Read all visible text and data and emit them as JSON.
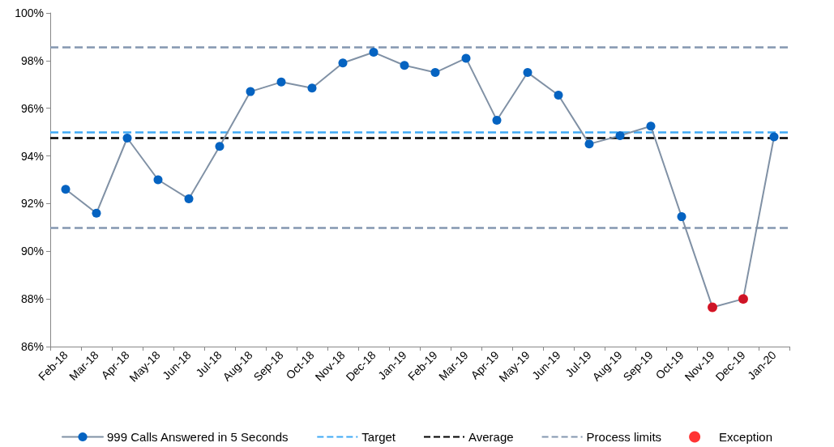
{
  "chart_data": {
    "type": "line",
    "categories": [
      "Feb-18",
      "Mar-18",
      "Apr-18",
      "May-18",
      "Jun-18",
      "Jul-18",
      "Aug-18",
      "Sep-18",
      "Oct-18",
      "Nov-18",
      "Dec-18",
      "Jan-19",
      "Feb-19",
      "Mar-19",
      "Apr-19",
      "May-19",
      "Jun-19",
      "Jul-19",
      "Aug-19",
      "Sep-19",
      "Oct-19",
      "Nov-19",
      "Dec-19",
      "Jan-20"
    ],
    "series": [
      {
        "name": "999 Calls Answered in 5 Seconds",
        "color": "#0563c1",
        "values": [
          92.6,
          91.6,
          94.75,
          93.0,
          92.2,
          94.4,
          96.7,
          97.1,
          96.85,
          97.9,
          98.35,
          97.8,
          97.5,
          98.1,
          95.5,
          97.5,
          96.55,
          94.5,
          94.85,
          95.25,
          91.45,
          87.65,
          88.0,
          94.8
        ]
      },
      {
        "name": "Exception",
        "type": "scatter",
        "color": "#ff0000",
        "x": [
          "Nov-19",
          "Dec-19"
        ],
        "values": [
          87.65,
          88.0
        ]
      }
    ],
    "ref_lines": [
      {
        "axis": "y",
        "value": 95.0,
        "label": "Target",
        "color": "#3fa9f5",
        "line_style": "dashed"
      },
      {
        "axis": "y",
        "value": 94.75,
        "label": "Average",
        "color": "#000000",
        "line_style": "dashed"
      },
      {
        "axis": "y",
        "value": 98.55,
        "label": "Process limits",
        "color": "#8497b0",
        "line_style": "dashed"
      },
      {
        "axis": "y",
        "value": 91.0,
        "color": "#8497b0",
        "line_style": "dashed"
      }
    ],
    "ylim": [
      86,
      100
    ],
    "yticks": [
      {
        "value": 86,
        "label": "86%"
      },
      {
        "value": 88,
        "label": "88%"
      },
      {
        "value": 90,
        "label": "90%"
      },
      {
        "value": 92,
        "label": "92%"
      },
      {
        "value": 94,
        "label": "94%"
      },
      {
        "value": 96,
        "label": "96%"
      },
      {
        "value": 98,
        "label": "98%"
      },
      {
        "value": 100,
        "label": "100%"
      }
    ],
    "grid": false,
    "legend": "bottom",
    "marker": "circle",
    "line_style": "solid"
  }
}
